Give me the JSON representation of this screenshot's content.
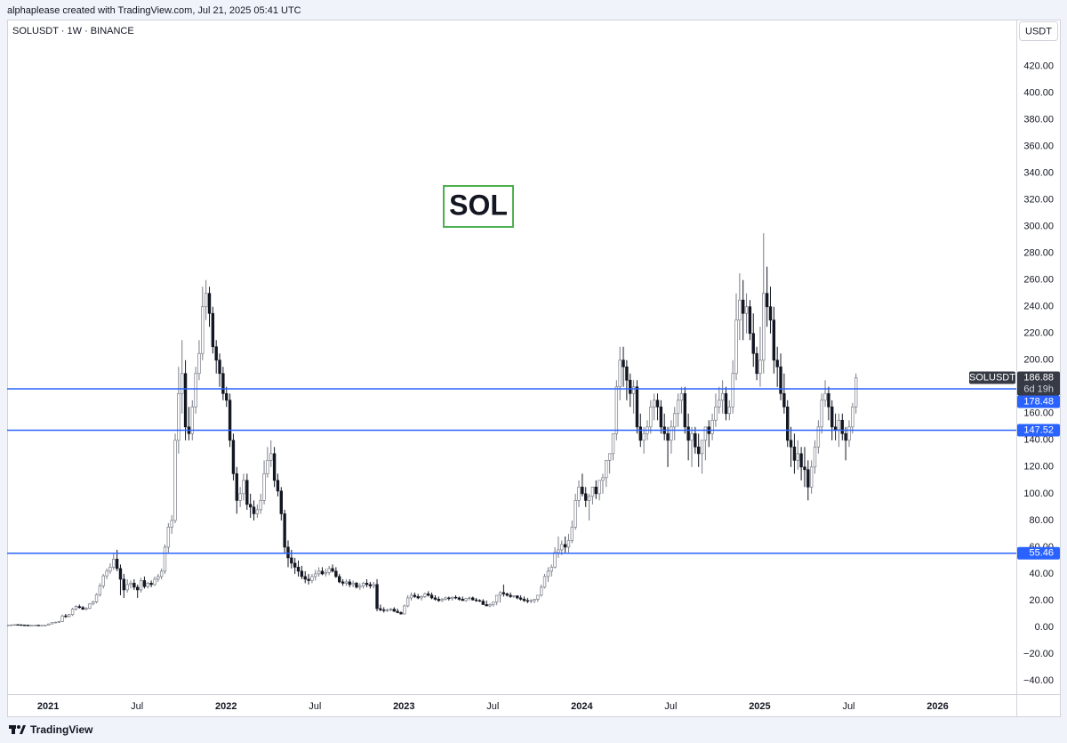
{
  "header": {
    "credit": "alphaplease created with TradingView.com, Jul 21, 2025 05:41 UTC"
  },
  "footer": {
    "brand": "TradingView"
  },
  "chart_data": {
    "type": "candlestick",
    "title": "SOLUSDT · 1W · BINANCE",
    "y_unit": "USDT",
    "annotations": [
      "SOL"
    ],
    "countdown": "6d 19h",
    "up_color": "#ffffff",
    "down_color": "#131722",
    "border_color": "#787b86",
    "xlim": [
      0,
      295
    ],
    "ylim": [
      -50,
      455
    ],
    "xticks": [
      {
        "value": 12,
        "label": "2021"
      },
      {
        "value": 38,
        "label": "Jul"
      },
      {
        "value": 64,
        "label": "2022"
      },
      {
        "value": 90,
        "label": "Jul"
      },
      {
        "value": 116,
        "label": "2023"
      },
      {
        "value": 142,
        "label": "Jul"
      },
      {
        "value": 168,
        "label": "2024"
      },
      {
        "value": 194,
        "label": "Jul"
      },
      {
        "value": 220,
        "label": "2025"
      },
      {
        "value": 246,
        "label": "Jul"
      },
      {
        "value": 272,
        "label": "2026"
      }
    ],
    "yticks": [
      {
        "value": -40,
        "label": "−40.00"
      },
      {
        "value": -20,
        "label": "−20.00"
      },
      {
        "value": 0,
        "label": "0.00"
      },
      {
        "value": 20,
        "label": "20.00"
      },
      {
        "value": 40,
        "label": "40.00"
      },
      {
        "value": 60,
        "label": "60.00"
      },
      {
        "value": 80,
        "label": "80.00"
      },
      {
        "value": 100,
        "label": "100.00"
      },
      {
        "value": 120,
        "label": "120.00"
      },
      {
        "value": 140,
        "label": "140.00"
      },
      {
        "value": 160,
        "label": "160.00"
      },
      {
        "value": 200,
        "label": "200.00"
      },
      {
        "value": 220,
        "label": "220.00"
      },
      {
        "value": 240,
        "label": "240.00"
      },
      {
        "value": 260,
        "label": "260.00"
      },
      {
        "value": 280,
        "label": "280.00"
      },
      {
        "value": 300,
        "label": "300.00"
      },
      {
        "value": 320,
        "label": "320.00"
      },
      {
        "value": 340,
        "label": "340.00"
      },
      {
        "value": 360,
        "label": "360.00"
      },
      {
        "value": 380,
        "label": "380.00"
      },
      {
        "value": 400,
        "label": "400.00"
      },
      {
        "value": 420,
        "label": "420.00"
      }
    ],
    "hlines": [
      {
        "value": 178.48,
        "color": "#2962ff"
      },
      {
        "value": 147.52,
        "color": "#2962ff"
      },
      {
        "value": 55.46,
        "color": "#2962ff"
      }
    ],
    "series": [
      {
        "name": "SOLUSDT",
        "open": [
          1.5,
          1.6,
          1.8,
          2.0,
          1.9,
          1.7,
          1.6,
          1.5,
          1.5,
          1.6,
          1.5,
          1.5,
          1.6,
          2.5,
          3.5,
          3.8,
          4.3,
          8.5,
          8.0,
          9.5,
          13.5,
          15.5,
          14.8,
          13.5,
          14.2,
          17.5,
          19.0,
          24.5,
          31.0,
          38.5,
          42,
          45,
          51,
          44,
          36,
          28,
          32,
          33,
          30,
          28,
          35,
          30.5,
          33,
          32,
          36,
          38,
          42,
          60,
          75,
          80,
          140,
          175,
          190,
          150,
          145,
          165,
          190,
          205,
          240,
          250,
          235,
          210,
          200,
          190,
          175,
          170,
          140,
          115,
          95,
          100,
          110,
          92,
          90,
          85,
          88,
          95,
          115,
          125,
          130,
          110,
          102,
          85,
          60,
          52,
          48,
          45,
          42,
          38,
          36,
          35,
          38,
          40,
          42,
          40,
          41,
          44,
          42,
          38,
          34,
          33,
          34,
          32,
          33,
          30,
          31,
          33,
          32,
          31,
          32,
          14,
          13,
          12.5,
          13,
          13.5,
          12,
          11,
          10,
          16,
          22,
          24,
          23,
          22,
          23,
          25,
          24,
          22,
          21,
          20,
          21,
          22,
          21.5,
          22.5,
          22,
          21,
          20,
          21.5,
          22,
          20.5,
          20,
          19.5,
          17,
          16,
          17,
          19,
          24,
          26,
          25,
          24,
          23,
          23.5,
          22,
          21,
          20,
          19.5,
          20,
          21,
          24,
          30,
          38,
          42,
          45,
          56,
          58,
          62,
          60,
          65,
          75,
          95,
          105,
          100,
          95,
          98,
          105,
          100,
          110,
          112,
          125,
          130,
          145,
          180,
          200,
          195,
          185,
          175,
          180,
          150,
          140,
          145,
          150,
          165,
          170,
          165,
          150,
          145,
          140,
          150,
          160,
          170,
          175,
          150,
          140,
          145,
          135,
          130,
          140,
          150,
          145,
          155,
          165,
          170,
          175,
          160,
          165,
          190,
          230,
          245,
          235,
          240,
          220,
          205,
          190,
          200,
          250,
          240,
          230,
          200,
          195,
          175,
          165,
          140,
          135,
          125,
          130,
          120,
          118,
          105,
          120,
          135,
          150,
          170,
          175,
          165,
          150,
          148,
          155,
          145,
          140,
          150,
          165
        ],
        "high": [
          1.7,
          1.9,
          2.1,
          2.1,
          2.0,
          1.8,
          1.7,
          1.6,
          1.7,
          1.7,
          1.6,
          1.7,
          2.8,
          3.8,
          4.2,
          4.6,
          9.5,
          10.0,
          10.0,
          14.5,
          16.5,
          17.0,
          16.0,
          15.0,
          18.0,
          20.0,
          25.5,
          33.0,
          40.0,
          44.0,
          48,
          55,
          58,
          47,
          40,
          36,
          35,
          36,
          32,
          37,
          38,
          34,
          35,
          38,
          40,
          44,
          62,
          78,
          84,
          145,
          195,
          215,
          200,
          165,
          170,
          195,
          215,
          255,
          260,
          255,
          240,
          215,
          205,
          195,
          180,
          175,
          145,
          120,
          105,
          115,
          115,
          100,
          95,
          92,
          100,
          125,
          135,
          140,
          135,
          115,
          105,
          88,
          65,
          58,
          52,
          50,
          46,
          42,
          40,
          40,
          43,
          45,
          45,
          44,
          46,
          47,
          45,
          40,
          36,
          36,
          36,
          35,
          34,
          33,
          34,
          36,
          34,
          34,
          36,
          17,
          15,
          14,
          14.5,
          15,
          14,
          12,
          17,
          24,
          26,
          26,
          25,
          24,
          26,
          27,
          26,
          24,
          23,
          22,
          23,
          23,
          23,
          24,
          23,
          23,
          22,
          23,
          23,
          22,
          21,
          21,
          20,
          18,
          19,
          20,
          27,
          32,
          26,
          26,
          24,
          24,
          24,
          23,
          22,
          21,
          21,
          24,
          32,
          40,
          45,
          47,
          60,
          68,
          65,
          68,
          70,
          80,
          100,
          110,
          115,
          105,
          100,
          105,
          110,
          108,
          115,
          120,
          130,
          140,
          185,
          210,
          210,
          200,
          190,
          185,
          185,
          160,
          150,
          155,
          170,
          175,
          175,
          170,
          160,
          150,
          155,
          165,
          175,
          180,
          180,
          160,
          150,
          150,
          145,
          140,
          145,
          155,
          160,
          175,
          180,
          185,
          180,
          170,
          200,
          250,
          265,
          260,
          250,
          245,
          235,
          210,
          225,
          295,
          270,
          255,
          240,
          210,
          205,
          190,
          170,
          150,
          145,
          140,
          135,
          135,
          125,
          125,
          140,
          155,
          175,
          185,
          180,
          170,
          160,
          160,
          160,
          150,
          155,
          168,
          190
        ],
        "low": [
          1.4,
          1.5,
          1.7,
          1.8,
          1.6,
          1.5,
          1.4,
          1.4,
          1.4,
          1.4,
          1.4,
          1.4,
          1.5,
          2.3,
          3.0,
          3.2,
          4.0,
          7.0,
          7.5,
          8.5,
          12.5,
          14.0,
          13.0,
          12.5,
          13.5,
          16.5,
          18.0,
          23.0,
          29.0,
          36.0,
          40,
          43,
          42,
          24,
          22,
          26,
          29,
          28,
          22,
          26,
          29,
          29,
          30,
          31,
          34,
          36,
          40,
          56,
          70,
          78,
          130,
          160,
          140,
          140,
          140,
          160,
          185,
          200,
          230,
          225,
          205,
          190,
          180,
          170,
          165,
          135,
          110,
          85,
          90,
          95,
          88,
          82,
          80,
          82,
          85,
          92,
          112,
          120,
          105,
          98,
          80,
          55,
          45,
          44,
          40,
          38,
          36,
          33,
          32,
          33,
          35,
          38,
          39,
          38,
          39,
          41,
          37,
          33,
          31,
          31,
          30,
          30,
          29,
          28,
          29,
          30,
          29,
          29,
          12,
          12,
          11,
          11.5,
          12,
          11.5,
          10.5,
          9.5,
          9.5,
          15,
          20,
          22,
          21,
          20,
          22,
          23,
          21,
          20,
          19,
          19,
          20,
          20,
          20,
          21,
          20,
          20,
          19,
          20,
          20,
          19,
          19,
          18,
          16,
          15,
          15.5,
          16.5,
          18.5,
          23,
          23,
          22,
          22,
          21,
          20,
          19,
          18,
          18,
          18,
          19,
          23,
          29,
          34,
          38,
          44,
          52,
          54,
          56,
          56,
          63,
          73,
          90,
          98,
          90,
          80,
          92,
          96,
          95,
          100,
          105,
          115,
          125,
          140,
          170,
          180,
          170,
          165,
          160,
          145,
          135,
          130,
          140,
          145,
          155,
          155,
          145,
          140,
          120,
          130,
          140,
          150,
          160,
          145,
          125,
          120,
          130,
          120,
          115,
          125,
          135,
          140,
          150,
          160,
          160,
          155,
          155,
          160,
          185,
          215,
          215,
          220,
          215,
          195,
          185,
          180,
          190,
          225,
          220,
          190,
          180,
          170,
          160,
          135,
          120,
          115,
          118,
          110,
          105,
          95,
          100,
          115,
          130,
          145,
          165,
          155,
          140,
          140,
          135,
          140,
          125,
          135,
          145,
          160
        ],
        "close": [
          1.6,
          1.8,
          2.0,
          1.9,
          1.7,
          1.6,
          1.5,
          1.5,
          1.6,
          1.5,
          1.5,
          1.6,
          2.5,
          3.5,
          3.8,
          4.3,
          8.5,
          8.0,
          9.5,
          13.5,
          15.5,
          14.8,
          13.5,
          14.2,
          17.5,
          19.0,
          24.5,
          31.0,
          38.5,
          42.0,
          45,
          51,
          44,
          36,
          28,
          32,
          33,
          30,
          28,
          35,
          30.5,
          33,
          32,
          36,
          38,
          42,
          60,
          75,
          80,
          140,
          175,
          190,
          150,
          145,
          165,
          190,
          205,
          240,
          250,
          235,
          210,
          200,
          190,
          175,
          170,
          140,
          115,
          95,
          100,
          110,
          92,
          90,
          85,
          88,
          95,
          115,
          125,
          130,
          110,
          102,
          85,
          60,
          52,
          48,
          45,
          42,
          38,
          36,
          35,
          38,
          40,
          42,
          40,
          41,
          44,
          42,
          38,
          34,
          33,
          34,
          32,
          33,
          30,
          31,
          33,
          32,
          31,
          32,
          14,
          13,
          12.5,
          13,
          13.5,
          12,
          11,
          10,
          16,
          22,
          24,
          23,
          22,
          23,
          25,
          24,
          22,
          21,
          20,
          21,
          22,
          21.5,
          22.5,
          22,
          21,
          20,
          21.5,
          22,
          20.5,
          20,
          19.5,
          17,
          16,
          17,
          19,
          24,
          26,
          25,
          24,
          23,
          23.5,
          22,
          21,
          20,
          19.5,
          20,
          21,
          24,
          30,
          38,
          42,
          45,
          56,
          58,
          62,
          60,
          65,
          75,
          95,
          105,
          100,
          95,
          98,
          105,
          100,
          110,
          112,
          125,
          130,
          145,
          180,
          200,
          195,
          185,
          175,
          180,
          150,
          140,
          145,
          150,
          165,
          170,
          165,
          150,
          145,
          140,
          150,
          160,
          170,
          175,
          150,
          140,
          145,
          135,
          130,
          140,
          150,
          145,
          155,
          165,
          170,
          175,
          160,
          165,
          190,
          230,
          245,
          235,
          240,
          220,
          205,
          190,
          200,
          250,
          240,
          230,
          200,
          195,
          175,
          165,
          140,
          135,
          125,
          130,
          120,
          118,
          105,
          120,
          135,
          150,
          170,
          175,
          165,
          150,
          148,
          155,
          145,
          140,
          150,
          165,
          186.88
        ]
      }
    ]
  }
}
